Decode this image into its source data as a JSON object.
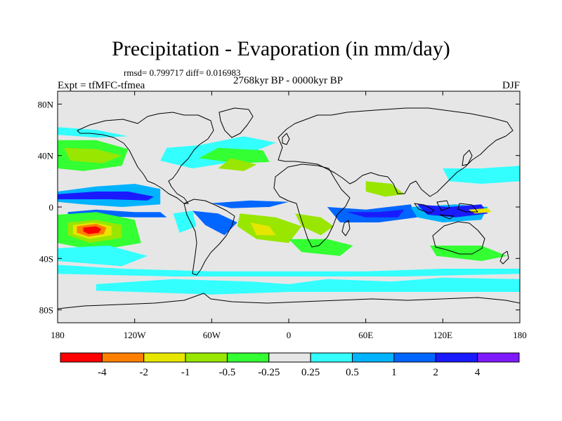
{
  "figure": {
    "title": "Precipitation - Evaporation (in mm/day)",
    "stats": "rmsd= 0.799717 diff= 0.016983",
    "period": "2768kyr BP - 0000kyr BP",
    "experiment": "Expt = tfMFC-tfmea",
    "season": "DJF"
  },
  "map": {
    "projection": "cylindrical-equidistant",
    "lon_range": [
      -180,
      180
    ],
    "lat_range": [
      -90,
      90
    ],
    "background_color": "#e6e6e6",
    "coastline_color": "#000000",
    "x_ticks": [
      {
        "lon": -180,
        "label": "180"
      },
      {
        "lon": -120,
        "label": "120W"
      },
      {
        "lon": -60,
        "label": "60W"
      },
      {
        "lon": 0,
        "label": "0"
      },
      {
        "lon": 60,
        "label": "60E"
      },
      {
        "lon": 120,
        "label": "120E"
      },
      {
        "lon": 180,
        "label": "180"
      }
    ],
    "y_ticks": [
      {
        "lat": 80,
        "label": "80N"
      },
      {
        "lat": 40,
        "label": "40N"
      },
      {
        "lat": 0,
        "label": "0"
      },
      {
        "lat": -40,
        "label": "40S"
      },
      {
        "lat": -80,
        "label": "80S"
      }
    ]
  },
  "colorbar": {
    "colors": [
      "#ff0000",
      "#ff8000",
      "#e6e600",
      "#99e600",
      "#33ff33",
      "#e6e6e6",
      "#33ffff",
      "#00b3ff",
      "#0066ff",
      "#1a1aff",
      "#7f1aff"
    ],
    "labels": [
      "-4",
      "-2",
      "-1",
      "-0.5",
      "-0.25",
      "0.25",
      "0.5",
      "1",
      "2",
      "4"
    ]
  },
  "chart_data": {
    "type": "heatmap",
    "title": "Precipitation - Evaporation (in mm/day)",
    "subtitle": "2768kyr BP - 0000kyr BP",
    "levels": [
      -4,
      -2,
      -1,
      -0.5,
      -0.25,
      0.25,
      0.5,
      1,
      2,
      4
    ],
    "xlim": [
      -180,
      180
    ],
    "ylim": [
      -90,
      90
    ],
    "regions": [
      {
        "value": 0.6,
        "lonlat": [
          [
            -180,
            12
          ],
          [
            -150,
            16
          ],
          [
            -120,
            18
          ],
          [
            -100,
            14
          ],
          [
            -100,
            2
          ],
          [
            -130,
            0
          ],
          [
            -160,
            2
          ],
          [
            -180,
            4
          ]
        ]
      },
      {
        "value": 2.5,
        "lonlat": [
          [
            -180,
            10
          ],
          [
            -150,
            12
          ],
          [
            -125,
            12
          ],
          [
            -105,
            8
          ],
          [
            -110,
            5
          ],
          [
            -140,
            6
          ],
          [
            -170,
            6
          ],
          [
            -180,
            6
          ]
        ]
      },
      {
        "value": 1.5,
        "lonlat": [
          [
            -172,
            -4
          ],
          [
            -150,
            -2
          ],
          [
            -120,
            -4
          ],
          [
            -100,
            -4
          ],
          [
            -95,
            -8
          ],
          [
            -120,
            -8
          ],
          [
            -150,
            -7
          ],
          [
            -172,
            -8
          ]
        ]
      },
      {
        "value": -0.3,
        "lonlat": [
          [
            -180,
            52
          ],
          [
            -150,
            52
          ],
          [
            -125,
            45
          ],
          [
            -130,
            32
          ],
          [
            -160,
            28
          ],
          [
            -180,
            30
          ]
        ]
      },
      {
        "value": -0.8,
        "lonlat": [
          [
            -175,
            46
          ],
          [
            -150,
            45
          ],
          [
            -130,
            40
          ],
          [
            -145,
            34
          ],
          [
            -170,
            36
          ]
        ]
      },
      {
        "value": 0.35,
        "lonlat": [
          [
            -180,
            62
          ],
          [
            -150,
            60
          ],
          [
            -125,
            55
          ],
          [
            -150,
            54
          ],
          [
            -180,
            56
          ]
        ]
      },
      {
        "value": -0.3,
        "lonlat": [
          [
            -180,
            -6
          ],
          [
            -150,
            -4
          ],
          [
            -120,
            -10
          ],
          [
            -115,
            -28
          ],
          [
            -150,
            -34
          ],
          [
            -180,
            -28
          ]
        ]
      },
      {
        "value": -0.8,
        "lonlat": [
          [
            -172,
            -12
          ],
          [
            -150,
            -10
          ],
          [
            -130,
            -14
          ],
          [
            -130,
            -24
          ],
          [
            -155,
            -28
          ],
          [
            -172,
            -22
          ]
        ]
      },
      {
        "value": -1.5,
        "lonlat": [
          [
            -168,
            -14
          ],
          [
            -152,
            -12
          ],
          [
            -138,
            -15
          ],
          [
            -138,
            -22
          ],
          [
            -155,
            -25
          ],
          [
            -168,
            -21
          ]
        ]
      },
      {
        "value": -3,
        "lonlat": [
          [
            -165,
            -15
          ],
          [
            -150,
            -13
          ],
          [
            -142,
            -16
          ],
          [
            -144,
            -21
          ],
          [
            -156,
            -23
          ],
          [
            -165,
            -20
          ]
        ]
      },
      {
        "value": -5,
        "lonlat": [
          [
            -160,
            -16
          ],
          [
            -150,
            -15
          ],
          [
            -146,
            -17
          ],
          [
            -148,
            -20
          ],
          [
            -156,
            -21
          ],
          [
            -160,
            -19
          ]
        ]
      },
      {
        "value": 0.35,
        "lonlat": [
          [
            -180,
            -32
          ],
          [
            -140,
            -30
          ],
          [
            -110,
            -38
          ],
          [
            -130,
            -46
          ],
          [
            -180,
            -42
          ]
        ]
      },
      {
        "value": 0.35,
        "lonlat": [
          [
            -150,
            -60
          ],
          [
            -90,
            -56
          ],
          [
            -30,
            -58
          ],
          [
            0,
            -60
          ],
          [
            30,
            -56
          ],
          [
            80,
            -58
          ],
          [
            120,
            -55
          ],
          [
            180,
            -56
          ],
          [
            180,
            -66
          ],
          [
            120,
            -66
          ],
          [
            60,
            -66
          ],
          [
            0,
            -66
          ],
          [
            -60,
            -68
          ],
          [
            -120,
            -66
          ],
          [
            -150,
            -65
          ]
        ]
      },
      {
        "value": 0.35,
        "lonlat": [
          [
            -100,
            36
          ],
          [
            -75,
            30
          ],
          [
            -50,
            34
          ],
          [
            -30,
            42
          ],
          [
            -10,
            50
          ],
          [
            -35,
            55
          ],
          [
            -70,
            48
          ],
          [
            -95,
            46
          ]
        ]
      },
      {
        "value": -0.3,
        "lonlat": [
          [
            -70,
            38
          ],
          [
            -40,
            34
          ],
          [
            -15,
            35
          ],
          [
            -20,
            44
          ],
          [
            -55,
            46
          ]
        ]
      },
      {
        "value": -0.6,
        "lonlat": [
          [
            -55,
            30
          ],
          [
            -35,
            28
          ],
          [
            -25,
            33
          ],
          [
            -45,
            38
          ]
        ]
      },
      {
        "value": 1.5,
        "lonlat": [
          [
            -60,
            3
          ],
          [
            -30,
            5
          ],
          [
            0,
            4
          ],
          [
            -15,
            0
          ],
          [
            -45,
            -1
          ]
        ]
      },
      {
        "value": 1.5,
        "lonlat": [
          [
            -75,
            -3
          ],
          [
            -55,
            -5
          ],
          [
            -40,
            -12
          ],
          [
            -50,
            -22
          ],
          [
            -65,
            -14
          ]
        ]
      },
      {
        "value": -0.6,
        "lonlat": [
          [
            -38,
            -5
          ],
          [
            -10,
            -8
          ],
          [
            10,
            -15
          ],
          [
            0,
            -28
          ],
          [
            -25,
            -25
          ],
          [
            -40,
            -15
          ]
        ]
      },
      {
        "value": -1.5,
        "lonlat": [
          [
            -30,
            -12
          ],
          [
            -15,
            -15
          ],
          [
            -10,
            -22
          ],
          [
            -25,
            -22
          ]
        ]
      },
      {
        "value": 0.35,
        "lonlat": [
          [
            -90,
            -5
          ],
          [
            -75,
            -3
          ],
          [
            -72,
            -15
          ],
          [
            -85,
            -20
          ]
        ]
      },
      {
        "value": -0.3,
        "lonlat": [
          [
            0,
            -25
          ],
          [
            30,
            -25
          ],
          [
            50,
            -30
          ],
          [
            40,
            -38
          ],
          [
            10,
            -35
          ]
        ]
      },
      {
        "value": 1.5,
        "lonlat": [
          [
            30,
            0
          ],
          [
            60,
            -2
          ],
          [
            95,
            2
          ],
          [
            100,
            -8
          ],
          [
            70,
            -12
          ],
          [
            40,
            -12
          ]
        ]
      },
      {
        "value": 3,
        "lonlat": [
          [
            45,
            -4
          ],
          [
            70,
            -4
          ],
          [
            90,
            -2
          ],
          [
            85,
            -8
          ],
          [
            60,
            -8
          ]
        ]
      },
      {
        "value": -0.6,
        "lonlat": [
          [
            5,
            -5
          ],
          [
            25,
            -8
          ],
          [
            35,
            -15
          ],
          [
            25,
            -22
          ],
          [
            10,
            -15
          ]
        ]
      },
      {
        "value": -0.6,
        "lonlat": [
          [
            60,
            20
          ],
          [
            80,
            18
          ],
          [
            90,
            10
          ],
          [
            75,
            8
          ],
          [
            60,
            12
          ]
        ]
      },
      {
        "value": 0.6,
        "lonlat": [
          [
            95,
            0
          ],
          [
            130,
            2
          ],
          [
            155,
            0
          ],
          [
            150,
            -10
          ],
          [
            120,
            -12
          ],
          [
            100,
            -8
          ]
        ]
      },
      {
        "value": 2.5,
        "lonlat": [
          [
            100,
            2
          ],
          [
            125,
            0
          ],
          [
            150,
            2
          ],
          [
            155,
            -5
          ],
          [
            130,
            -8
          ],
          [
            108,
            -6
          ]
        ]
      },
      {
        "value": -1.5,
        "lonlat": [
          [
            140,
            -2
          ],
          [
            155,
            -1
          ],
          [
            158,
            -4
          ],
          [
            145,
            -5
          ]
        ]
      },
      {
        "value": -0.3,
        "lonlat": [
          [
            110,
            -30
          ],
          [
            150,
            -30
          ],
          [
            170,
            -38
          ],
          [
            150,
            -42
          ],
          [
            115,
            -38
          ]
        ]
      },
      {
        "value": 0.35,
        "lonlat": [
          [
            120,
            30
          ],
          [
            150,
            30
          ],
          [
            180,
            32
          ],
          [
            180,
            20
          ],
          [
            150,
            18
          ],
          [
            125,
            20
          ]
        ]
      },
      {
        "value": 0.35,
        "lonlat": [
          [
            -180,
            -45
          ],
          [
            -130,
            -48
          ],
          [
            -60,
            -50
          ],
          [
            0,
            -50
          ],
          [
            60,
            -50
          ],
          [
            120,
            -48
          ],
          [
            180,
            -48
          ],
          [
            180,
            -52
          ],
          [
            90,
            -54
          ],
          [
            0,
            -54
          ],
          [
            -90,
            -54
          ],
          [
            -180,
            -52
          ]
        ]
      }
    ]
  }
}
